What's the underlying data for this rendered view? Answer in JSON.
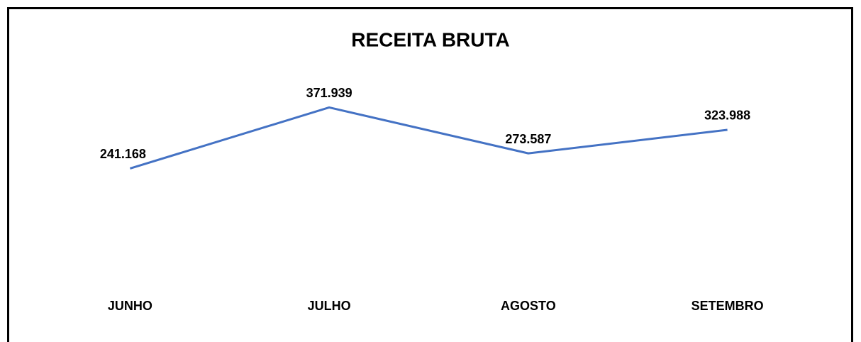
{
  "chart_data": {
    "type": "line",
    "title": "RECEITA BRUTA",
    "categories": [
      "JUNHO",
      "JULHO",
      "AGOSTO",
      "SETEMBRO"
    ],
    "values": [
      241168,
      371939,
      273587,
      323988
    ],
    "value_labels": [
      "241.168",
      "371.939",
      "273.587",
      "323.988"
    ],
    "color": "#4472c4",
    "ylim": [
      0,
      400000
    ]
  }
}
